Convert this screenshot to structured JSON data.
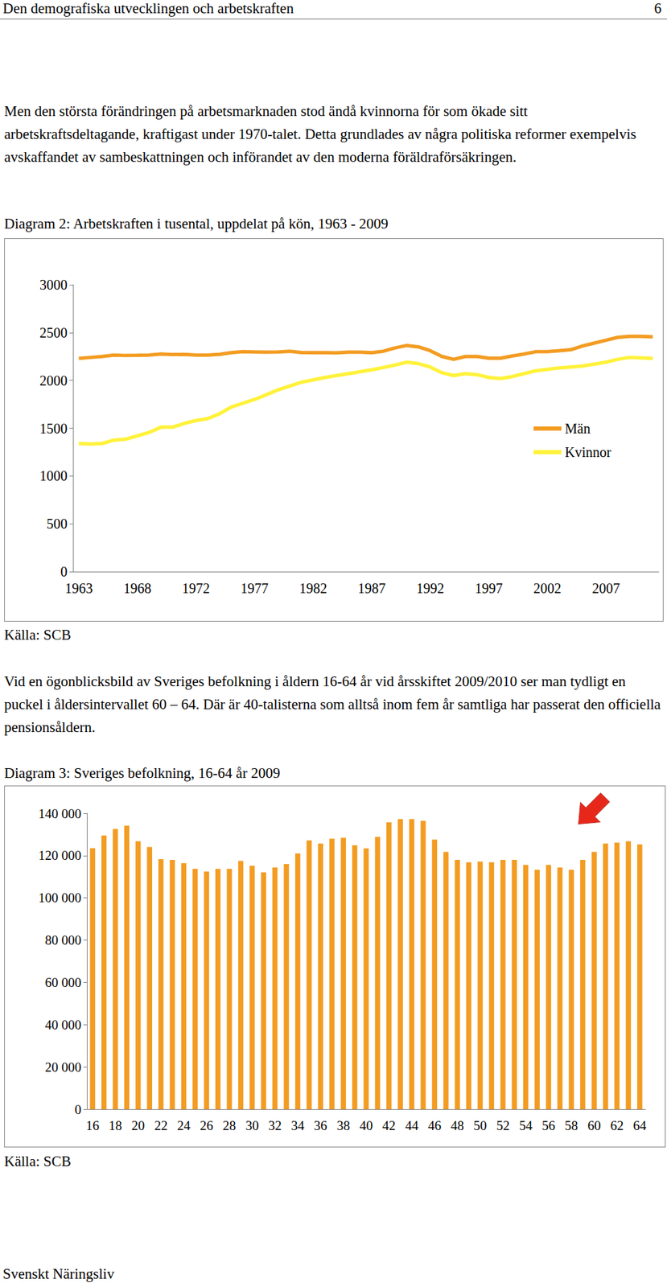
{
  "header": {
    "title": "Den demografiska utvecklingen och arbetskraften",
    "page": "6"
  },
  "paragraphs": [
    "Men den största förändringen på arbetsmarknaden stod ändå kvinnorna för som ökade sitt arbetskraftsdeltagande, kraftigast under 1970-talet. Detta grundlades av några politiska reformer exempelvis avskaffandet av sambeskattningen och införandet av den moderna föräldraförsäkringen.",
    "Vid en ögonblicksbild av Sveriges befolkning i åldern 16-64 år vid årsskiftet 2009/2010 ser man tydligt en puckel i åldersintervallet 60 – 64. Där är 40-talisterna som alltså inom fem år samtliga har passerat den officiella pensionsåldern."
  ],
  "chart_data": [
    {
      "type": "line",
      "title": "Diagram 2: Arbetskraften i tusental, uppdelat på kön, 1963 - 2009",
      "source": "Källa: SCB",
      "categories": [
        "1963",
        null,
        null,
        null,
        null,
        "1968",
        null,
        null,
        null,
        null,
        "1972",
        null,
        null,
        null,
        null,
        "1977",
        null,
        null,
        null,
        null,
        "1982",
        null,
        null,
        null,
        null,
        "1987",
        null,
        null,
        null,
        null,
        "1992",
        null,
        null,
        null,
        null,
        "1997",
        null,
        null,
        null,
        null,
        "2002",
        null,
        null,
        null,
        null,
        "2007",
        null,
        null,
        null,
        null
      ],
      "series": [
        {
          "name": "Män",
          "color": "#f39c22",
          "values": [
            2230,
            2240,
            2250,
            2265,
            2260,
            2262,
            2265,
            2275,
            2270,
            2272,
            2265,
            2265,
            2272,
            2290,
            2300,
            2298,
            2295,
            2298,
            2305,
            2292,
            2290,
            2290,
            2288,
            2295,
            2295,
            2290,
            2305,
            2340,
            2365,
            2350,
            2310,
            2250,
            2220,
            2250,
            2250,
            2232,
            2232,
            2255,
            2275,
            2300,
            2300,
            2310,
            2320,
            2360,
            2390,
            2420,
            2450,
            2460,
            2460,
            2455
          ]
        },
        {
          "name": "Kvinnor",
          "color": "#fff23a",
          "values": [
            1340,
            1335,
            1340,
            1375,
            1385,
            1420,
            1455,
            1510,
            1510,
            1550,
            1580,
            1600,
            1650,
            1720,
            1760,
            1800,
            1850,
            1900,
            1940,
            1980,
            2005,
            2030,
            2050,
            2070,
            2090,
            2110,
            2135,
            2160,
            2190,
            2175,
            2140,
            2080,
            2050,
            2070,
            2060,
            2030,
            2020,
            2040,
            2070,
            2100,
            2115,
            2130,
            2140,
            2150,
            2170,
            2190,
            2220,
            2240,
            2235,
            2230
          ]
        }
      ],
      "ylim": [
        0,
        3000
      ],
      "yticks": [
        0,
        500,
        1000,
        1500,
        2000,
        2500,
        3000
      ],
      "grid": false,
      "legend": "right"
    },
    {
      "type": "bar",
      "title": "Diagram 3: Sveriges befolkning, 16-64 år 2009",
      "source": "Källa: SCB",
      "categories": [
        "16",
        null,
        "18",
        null,
        "20",
        null,
        "22",
        null,
        "24",
        null,
        "26",
        null,
        "28",
        null,
        "30",
        null,
        "32",
        null,
        "34",
        null,
        "36",
        null,
        "38",
        null,
        "40",
        null,
        "42",
        null,
        "44",
        null,
        "46",
        null,
        "48",
        null,
        "50",
        null,
        "52",
        null,
        "54",
        null,
        "56",
        null,
        "58",
        null,
        "60",
        null,
        "62",
        null,
        "64"
      ],
      "values": [
        123500,
        129500,
        132600,
        134200,
        126800,
        124100,
        118300,
        118000,
        116400,
        113700,
        112500,
        113700,
        113700,
        117500,
        115200,
        112100,
        114400,
        116000,
        121000,
        127200,
        125700,
        128000,
        128400,
        124900,
        123400,
        128800,
        135700,
        137300,
        137300,
        136500,
        127600,
        121800,
        118000,
        116800,
        117200,
        116800,
        118000,
        118000,
        115600,
        113300,
        115600,
        114400,
        113300,
        118000,
        121800,
        125700,
        126100,
        126800,
        125300
      ],
      "color": "#f39c22",
      "ylim": [
        0,
        140000
      ],
      "yticks": [
        {
          "value": 0,
          "label": "0"
        },
        {
          "value": 20000,
          "label": "20 000"
        },
        {
          "value": 40000,
          "label": "40 000"
        },
        {
          "value": 60000,
          "label": "60 000"
        },
        {
          "value": 80000,
          "label": "80 000"
        },
        {
          "value": 100000,
          "label": "100 000"
        },
        {
          "value": 120000,
          "label": "120 000"
        },
        {
          "value": 140000,
          "label": "140 000"
        }
      ],
      "grid": false
    }
  ],
  "footer": "Svenskt Näringsliv"
}
